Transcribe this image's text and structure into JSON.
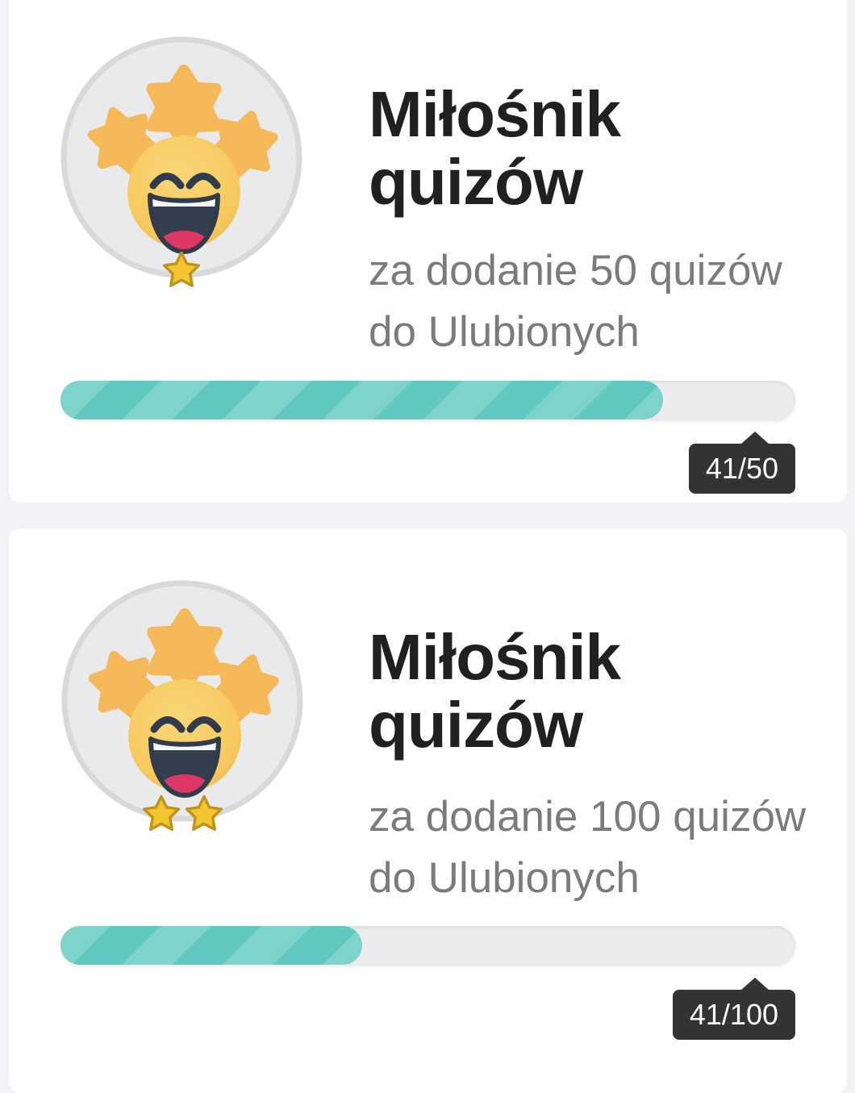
{
  "colors": {
    "background": "#f1f3f6",
    "card": "#ffffff",
    "accent_fill": "#5fc9bf",
    "accent_fill_stripe": "#7ed4cb",
    "track": "#ececee",
    "tooltip_bg": "#333333",
    "title_text": "#202020",
    "desc_text": "#7b7b7b",
    "badge_circle": "#e9eaec",
    "badge_star": "#f5b95a",
    "rank_star_gold": "#f2c531"
  },
  "badges": [
    {
      "icon": "laughing-face-with-stars-badge",
      "title": "Miłośnik quizów",
      "description": "za dodanie 50 quizów do Ulubionych",
      "progress_current": 41,
      "progress_total": 50,
      "progress_label": "41/50",
      "stars": 1
    },
    {
      "icon": "laughing-face-with-stars-badge",
      "title": "Miłośnik quizów",
      "description": "za dodanie 100 quizów do Ulubionych",
      "progress_current": 41,
      "progress_total": 100,
      "progress_label": "41/100",
      "stars": 2
    }
  ]
}
